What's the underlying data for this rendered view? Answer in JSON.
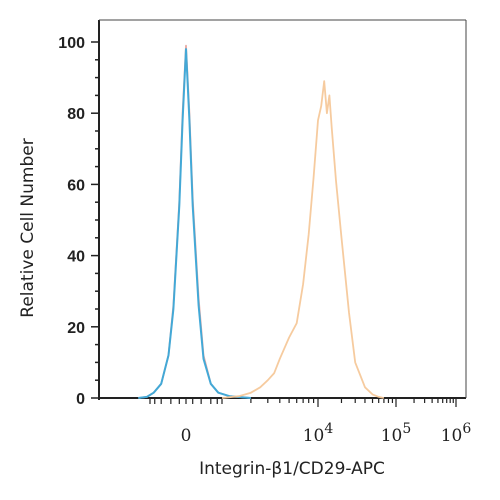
{
  "chart_data": {
    "type": "line",
    "title": "",
    "xlabel": "Integrin-β1/CD29-APC",
    "ylabel": "Relative Cell Number",
    "x_scale": "biexponential",
    "ylim": [
      0,
      100
    ],
    "grid": false,
    "legend": "none",
    "y_ticks": [
      0,
      20,
      40,
      60,
      80,
      100
    ],
    "x_ticks": [
      {
        "base": "0",
        "exp": ""
      },
      {
        "base": "10",
        "exp": "4"
      },
      {
        "base": "10",
        "exp": "5"
      },
      {
        "base": "10",
        "exp": "6"
      }
    ],
    "series": [
      {
        "color": "#e8a8a0",
        "x": [
          -2000,
          -1200,
          -800,
          -500,
          -300,
          -200,
          -100,
          -50,
          0,
          50,
          100,
          200,
          300,
          500,
          800,
          1200,
          2000
        ],
        "y": [
          0,
          0.3,
          1.5,
          4,
          12,
          26,
          55,
          80,
          99,
          80,
          56,
          28,
          12,
          4,
          1.5,
          0.5,
          0
        ]
      },
      {
        "color": "#3aa8d8",
        "x": [
          -2000,
          -1200,
          -800,
          -500,
          -300,
          -200,
          -100,
          -50,
          0,
          50,
          100,
          200,
          300,
          500,
          800,
          1200,
          2000
        ],
        "y": [
          0,
          0.3,
          1.5,
          4,
          12,
          25,
          54,
          78,
          98,
          78,
          54,
          26,
          11,
          4,
          1.5,
          0.5,
          0
        ]
      },
      {
        "color": "#f5c89a",
        "x": [
          1000,
          1500,
          2000,
          2500,
          3000,
          3500,
          4000,
          5000,
          6000,
          7000,
          8000,
          9000,
          10000,
          11000,
          12000,
          13000,
          14000,
          15000,
          17000,
          20000,
          25000,
          30000,
          40000,
          50000,
          60000,
          70000
        ],
        "y": [
          0,
          0.5,
          1.5,
          3,
          5,
          7,
          11,
          17,
          21,
          32,
          46,
          62,
          78,
          82,
          89,
          80,
          85,
          76,
          61,
          45,
          24,
          10,
          3,
          1,
          0.3,
          0
        ]
      }
    ]
  }
}
